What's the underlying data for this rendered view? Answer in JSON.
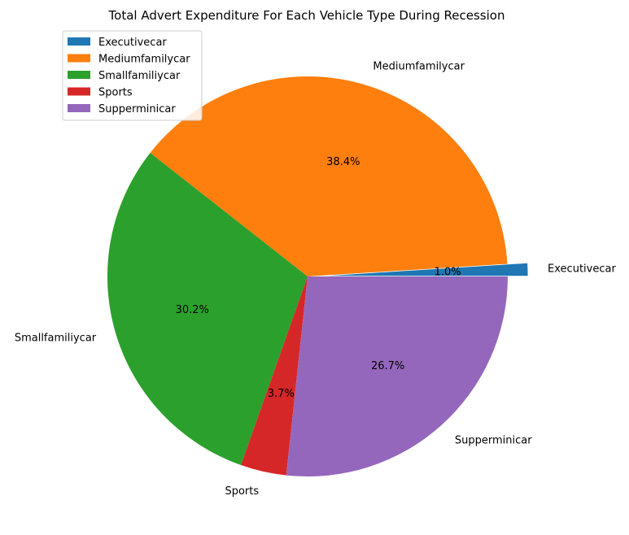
{
  "chart_data": {
    "type": "pie",
    "title": "Total Advert Expenditure For Each Vehicle Type During Recession",
    "slices": [
      {
        "label": "Executivecar",
        "percent": 1.0,
        "pct_label": "1.0%",
        "color": "#1f77b4",
        "exploded": true
      },
      {
        "label": "Mediumfamilycar",
        "percent": 38.4,
        "pct_label": "38.4%",
        "color": "#ff7f0e",
        "exploded": false
      },
      {
        "label": "Smallfamiliycar",
        "percent": 30.2,
        "pct_label": "30.2%",
        "color": "#2ca02c",
        "exploded": false
      },
      {
        "label": "Sports",
        "percent": 3.7,
        "pct_label": "3.7%",
        "color": "#d62728",
        "exploded": false
      },
      {
        "label": "Supperminicar",
        "percent": 26.7,
        "pct_label": "26.7%",
        "color": "#9467bd",
        "exploded": false
      }
    ],
    "legend": {
      "placement": "top-left",
      "entries": [
        "Executivecar",
        "Mediumfamilycar",
        "Smallfamiliycar",
        "Sports",
        "Supperminicar"
      ]
    },
    "start_angle_deg": 0,
    "direction": "counterclockwise"
  }
}
